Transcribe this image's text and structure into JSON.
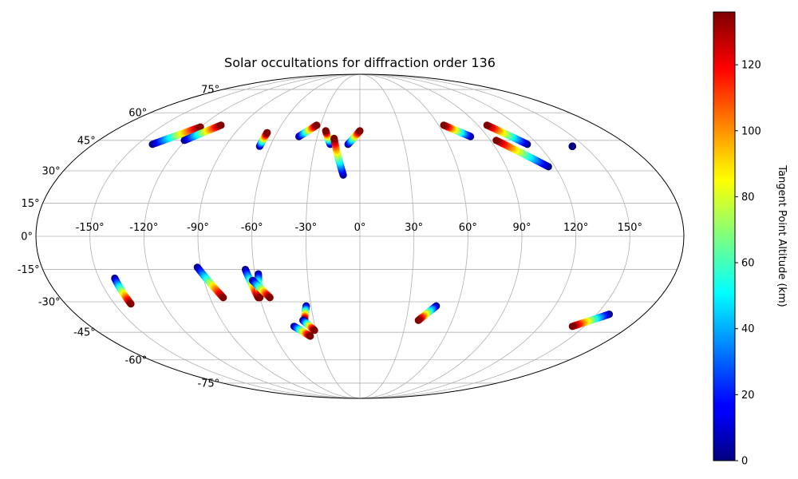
{
  "chart_data": {
    "type": "scatter",
    "projection": "mollweide",
    "title": "Solar occultations for diffraction order 136",
    "xlabel": "",
    "ylabel": "",
    "longitude_ticks": [
      -150,
      -120,
      -90,
      -60,
      -30,
      0,
      30,
      60,
      90,
      120,
      150
    ],
    "latitude_ticks": [
      -75,
      -60,
      -45,
      -30,
      -15,
      0,
      15,
      30,
      45,
      60,
      75
    ],
    "longitude_tick_labels": [
      "-150°",
      "-120°",
      "-90°",
      "-60°",
      "-30°",
      "0°",
      "30°",
      "60°",
      "90°",
      "120°",
      "150°"
    ],
    "latitude_tick_labels": [
      "-75°",
      "-60°",
      "-45°",
      "-30°",
      "-15°",
      "0°",
      "15°",
      "30°",
      "45°",
      "60°",
      "75°"
    ],
    "grid": true,
    "colorbar": {
      "label": "Tangent Point Altitude (km)",
      "range": [
        0,
        136
      ],
      "ticks": [
        0,
        20,
        40,
        60,
        80,
        100,
        120
      ],
      "tick_labels": [
        "0",
        "20",
        "40",
        "60",
        "80",
        "100",
        "120"
      ],
      "colormap": "jet"
    },
    "series": [
      {
        "lon": [
          -140,
          -120
        ],
        "lat": [
          43,
          52
        ],
        "alt": [
          0,
          136
        ]
      },
      {
        "lon": [
          -121,
          -106
        ],
        "lat": [
          45,
          53
        ],
        "alt": [
          0,
          136
        ]
      },
      {
        "lon": [
          -67,
          -67
        ],
        "lat": [
          42,
          49
        ],
        "alt": [
          0,
          136
        ]
      },
      {
        "lon": [
          -43,
          -33
        ],
        "lat": [
          47,
          53
        ],
        "alt": [
          0,
          136
        ]
      },
      {
        "lon": [
          -20,
          -25
        ],
        "lat": [
          43,
          50
        ],
        "alt": [
          0,
          136
        ]
      },
      {
        "lon": [
          -10,
          -18
        ],
        "lat": [
          28,
          46
        ],
        "alt": [
          0,
          136
        ]
      },
      {
        "lon": [
          -8,
          0
        ],
        "lat": [
          43,
          50
        ],
        "alt": [
          0,
          136
        ]
      },
      {
        "lon": [
          78,
          64
        ],
        "lat": [
          47,
          53
        ],
        "alt": [
          0,
          136
        ]
      },
      {
        "lon": [
          113,
          97
        ],
        "lat": [
          43,
          53
        ],
        "alt": [
          0,
          136
        ]
      },
      {
        "lon": [
          116,
          94
        ],
        "lat": [
          32,
          45
        ],
        "alt": [
          0,
          136
        ]
      },
      {
        "lon": [
          142,
          142
        ],
        "lat": [
          42,
          42
        ],
        "alt": [
          0,
          0
        ]
      },
      {
        "lon": [
          -141,
          -140
        ],
        "lat": [
          -19,
          -31
        ],
        "alt": [
          0,
          136
        ]
      },
      {
        "lon": [
          -92,
          -82
        ],
        "lat": [
          -14,
          -28
        ],
        "alt": [
          0,
          136
        ]
      },
      {
        "lon": [
          -65,
          -61
        ],
        "lat": [
          -15,
          -28
        ],
        "alt": [
          0,
          136
        ]
      },
      {
        "lon": [
          -58,
          -60
        ],
        "lat": [
          -17,
          -28
        ],
        "alt": [
          0,
          136
        ]
      },
      {
        "lon": [
          -62,
          -54
        ],
        "lat": [
          -20,
          -28
        ],
        "alt": [
          0,
          136
        ]
      },
      {
        "lon": [
          -44,
          -35
        ],
        "lat": [
          -42,
          -47
        ],
        "alt": [
          0,
          136
        ]
      },
      {
        "lon": [
          -33,
          -36
        ],
        "lat": [
          -32,
          -39
        ],
        "alt": [
          0,
          136
        ]
      },
      {
        "lon": [
          -37,
          -31
        ],
        "lat": [
          -39,
          -44
        ],
        "alt": [
          0,
          136
        ]
      },
      {
        "lon": [
          47,
          38
        ],
        "lat": [
          -32,
          -39
        ],
        "alt": [
          0,
          136
        ]
      },
      {
        "lon": [
          158,
          142
        ],
        "lat": [
          -36,
          -42
        ],
        "alt": [
          0,
          136
        ]
      }
    ]
  }
}
